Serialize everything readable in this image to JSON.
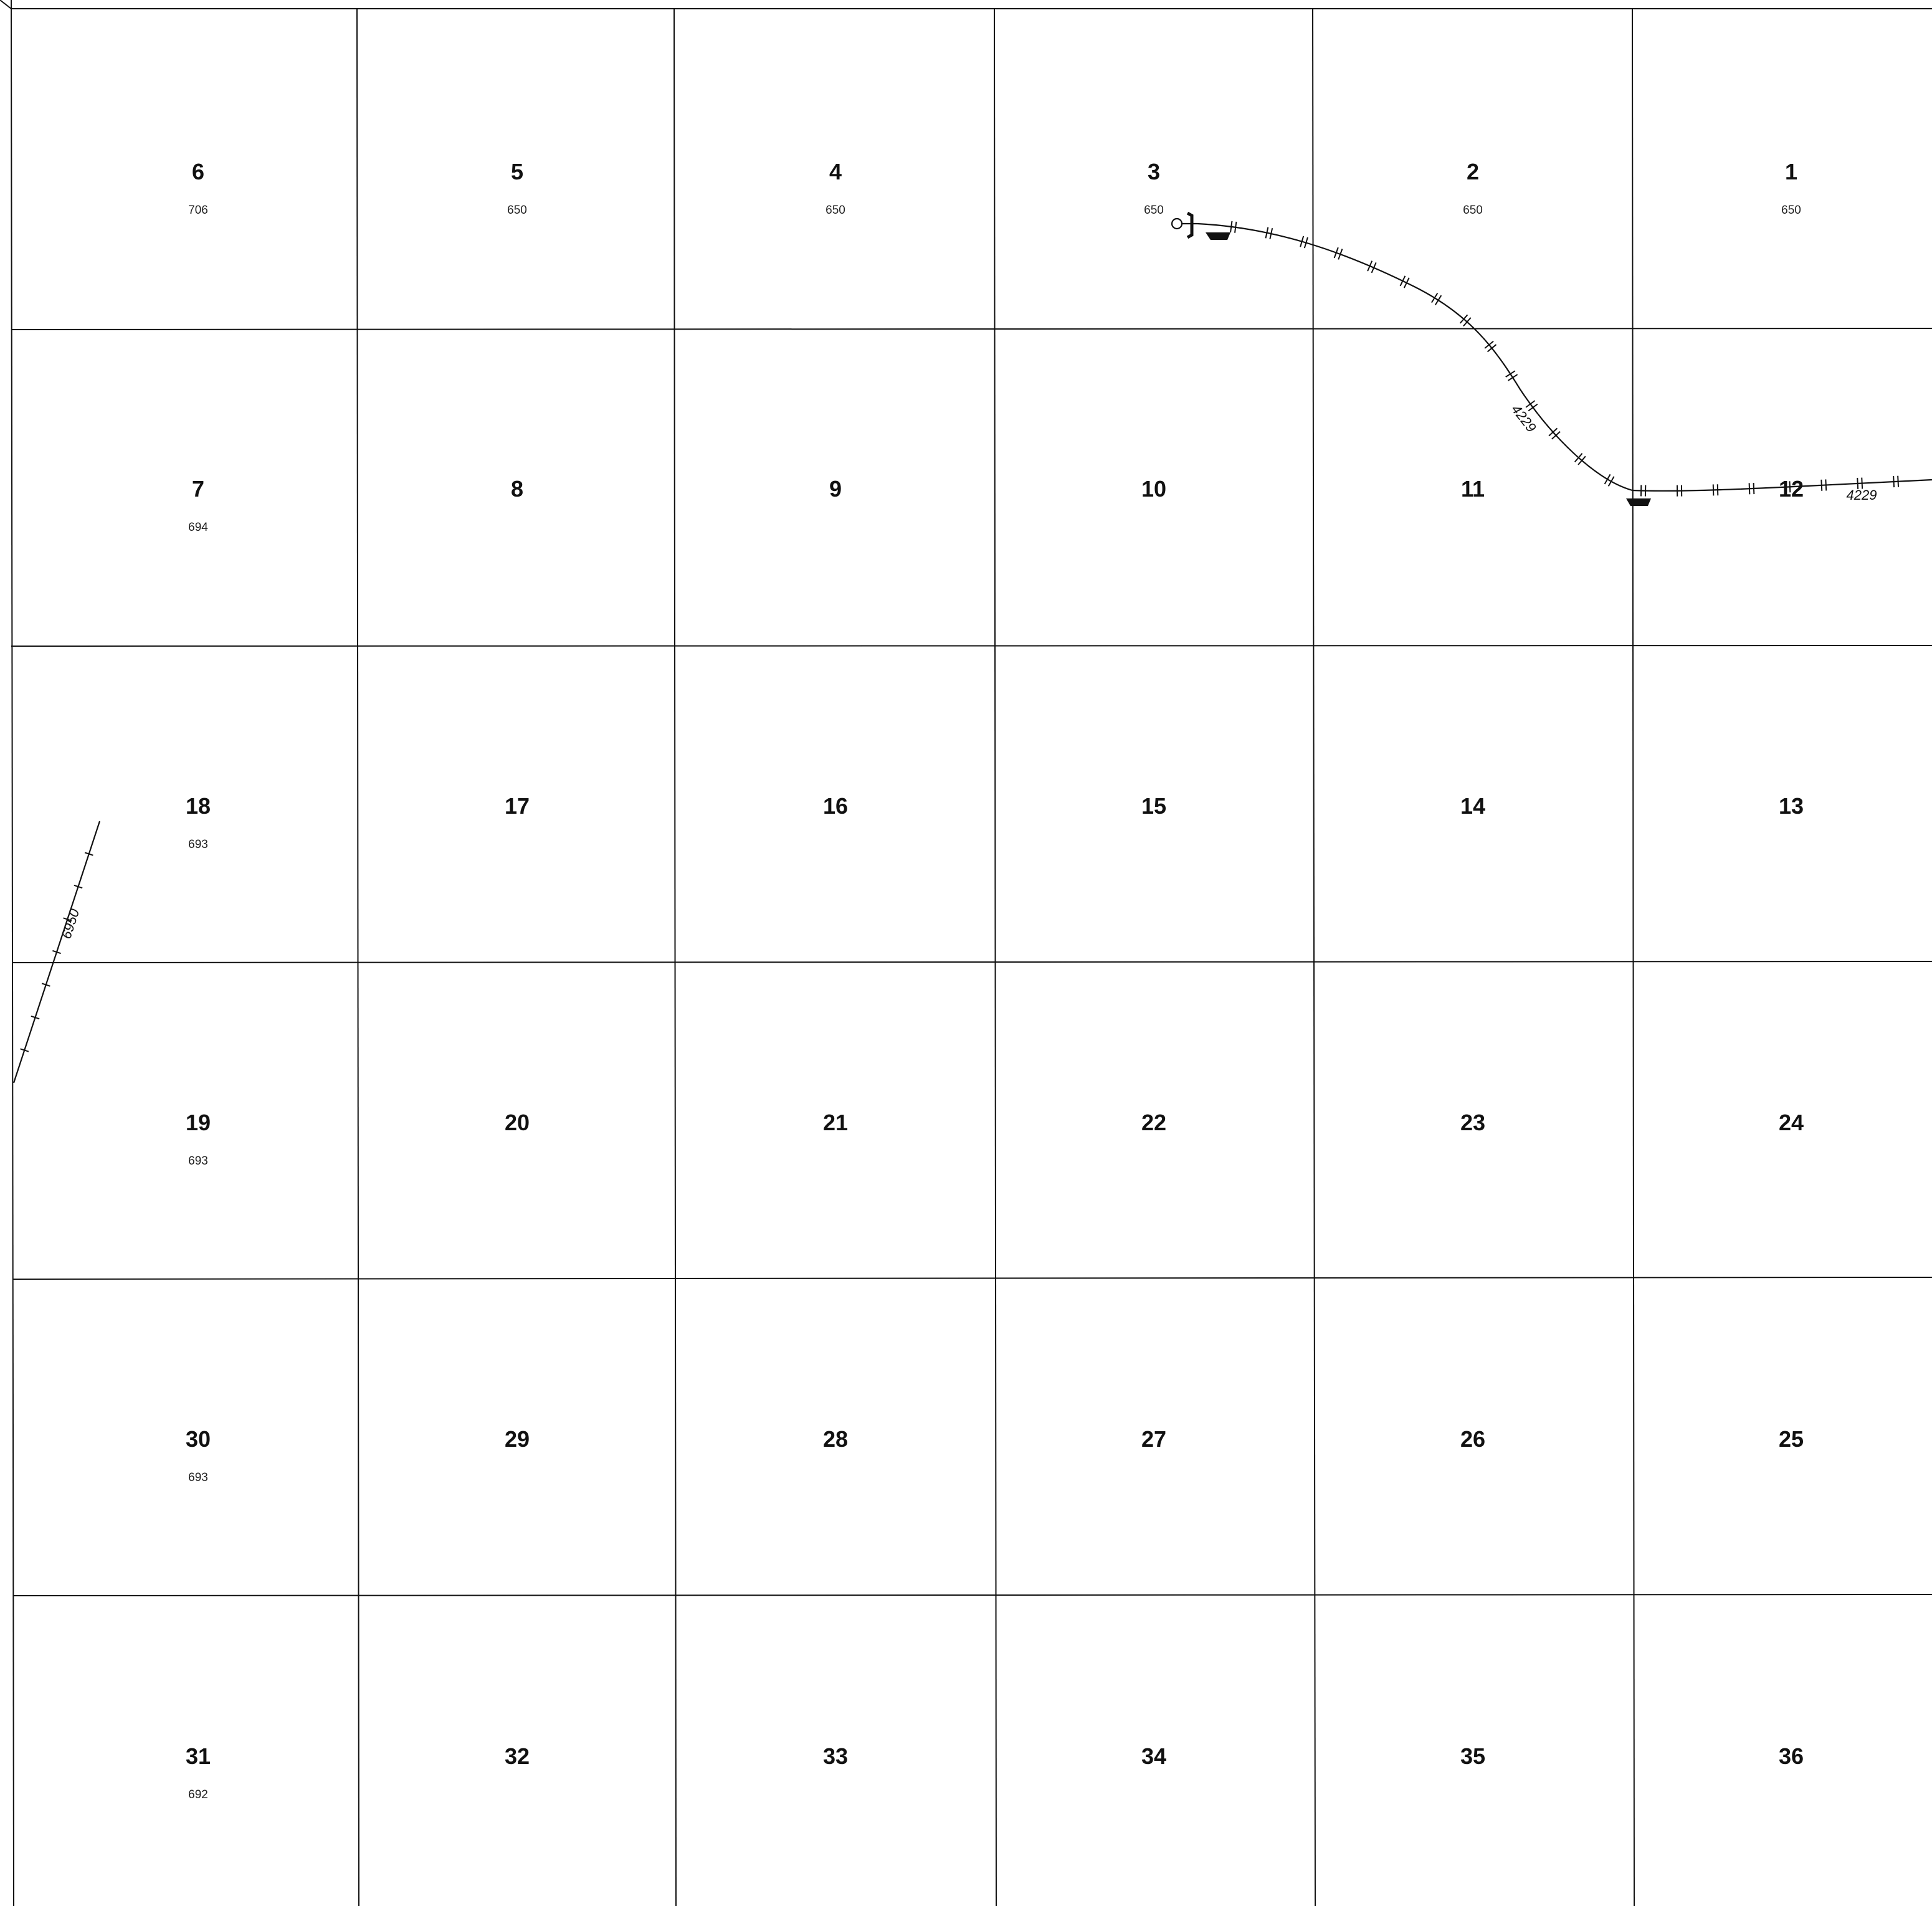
{
  "township_map": {
    "sections": [
      {
        "num": "6",
        "sub": "706"
      },
      {
        "num": "5",
        "sub": "650"
      },
      {
        "num": "4",
        "sub": "650"
      },
      {
        "num": "3",
        "sub": "650"
      },
      {
        "num": "2",
        "sub": "650"
      },
      {
        "num": "1",
        "sub": "650"
      },
      {
        "num": "7",
        "sub": "694"
      },
      {
        "num": "8",
        "sub": ""
      },
      {
        "num": "9",
        "sub": ""
      },
      {
        "num": "10",
        "sub": ""
      },
      {
        "num": "11",
        "sub": ""
      },
      {
        "num": "12",
        "sub": ""
      },
      {
        "num": "18",
        "sub": "693"
      },
      {
        "num": "17",
        "sub": ""
      },
      {
        "num": "16",
        "sub": ""
      },
      {
        "num": "15",
        "sub": ""
      },
      {
        "num": "14",
        "sub": ""
      },
      {
        "num": "13",
        "sub": ""
      },
      {
        "num": "19",
        "sub": "693"
      },
      {
        "num": "20",
        "sub": ""
      },
      {
        "num": "21",
        "sub": ""
      },
      {
        "num": "22",
        "sub": ""
      },
      {
        "num": "23",
        "sub": ""
      },
      {
        "num": "24",
        "sub": ""
      },
      {
        "num": "30",
        "sub": "693"
      },
      {
        "num": "29",
        "sub": ""
      },
      {
        "num": "28",
        "sub": ""
      },
      {
        "num": "27",
        "sub": ""
      },
      {
        "num": "26",
        "sub": ""
      },
      {
        "num": "25",
        "sub": ""
      },
      {
        "num": "31",
        "sub": "692"
      },
      {
        "num": "32",
        "sub": ""
      },
      {
        "num": "33",
        "sub": ""
      },
      {
        "num": "34",
        "sub": ""
      },
      {
        "num": "35",
        "sub": ""
      },
      {
        "num": "36",
        "sub": ""
      }
    ],
    "routes": {
      "main_line_label_a": "4229",
      "main_line_label_b": "4229",
      "west_line_label": "6950"
    },
    "colors": {
      "ink": "#111111",
      "paper": "#ffffff"
    }
  }
}
